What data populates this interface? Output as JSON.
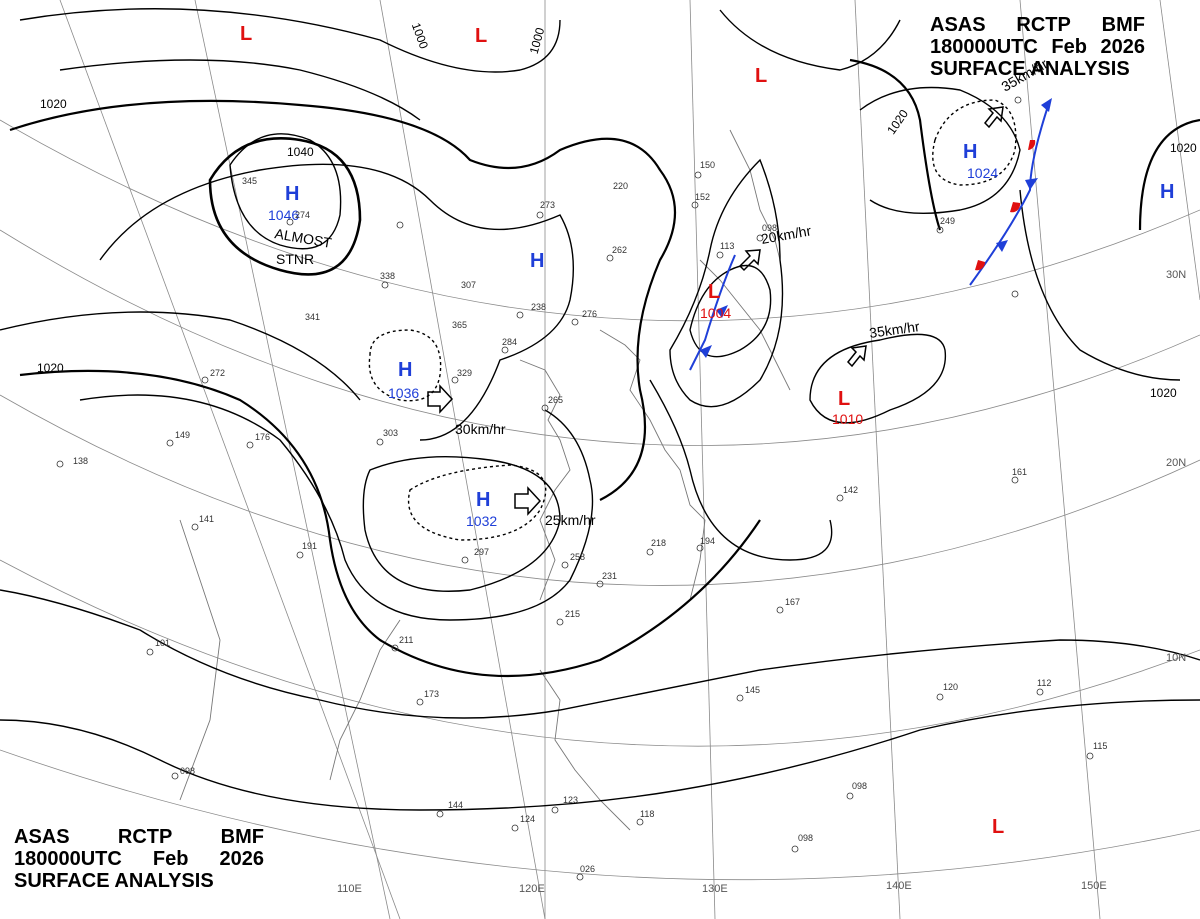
{
  "header": {
    "line1": [
      "ASAS",
      "RCTP",
      "BMF"
    ],
    "line2": [
      "180000UTC",
      "Feb",
      "2026"
    ],
    "line3": "SURFACE ANALYSIS"
  },
  "footer": {
    "line1": [
      "ASAS",
      "RCTP",
      "BMF"
    ],
    "line2": [
      "180000UTC",
      "Feb",
      "2026"
    ],
    "line3": "SURFACE ANALYSIS"
  },
  "colors": {
    "high": "#1f3fd8",
    "low": "#e01010",
    "isobar": "#000000",
    "grid": "#8a8a8a",
    "coast": "#777777"
  },
  "grid_labels": {
    "lon": [
      "110E",
      "120E",
      "130E",
      "140E",
      "150E"
    ],
    "lat": [
      "30N",
      "20N",
      "10N"
    ]
  },
  "isobar_labels": [
    "1020",
    "1040",
    "1000",
    "1000",
    "1020",
    "1020",
    "1020",
    "1020"
  ],
  "pressure_centers": [
    {
      "type": "H",
      "value": "1046"
    },
    {
      "type": "H",
      "value": ""
    },
    {
      "type": "H",
      "value": "1036"
    },
    {
      "type": "H",
      "value": "1032"
    },
    {
      "type": "H",
      "value": "1024"
    },
    {
      "type": "H",
      "value": ""
    },
    {
      "type": "L",
      "value": ""
    },
    {
      "type": "L",
      "value": ""
    },
    {
      "type": "L",
      "value": ""
    },
    {
      "type": "L",
      "value": "1004"
    },
    {
      "type": "L",
      "value": "1010"
    },
    {
      "type": "L",
      "value": ""
    }
  ],
  "annotations": {
    "almost": "ALMOST",
    "stnr": "STNR"
  },
  "motion_labels": [
    "30km/hr",
    "25km/hr",
    "20km/hr",
    "35km/hr",
    "35km/hr"
  ],
  "station_labels": [
    "274",
    "345",
    "338",
    "341",
    "272",
    "149",
    "176",
    "138",
    "303",
    "141",
    "191",
    "211",
    "101",
    "173",
    "098",
    "144",
    "124",
    "297",
    "258",
    "231",
    "215",
    "218",
    "194",
    "167",
    "145",
    "120",
    "112",
    "115",
    "098",
    "098",
    "161",
    "142",
    "249",
    "262",
    "238",
    "276",
    "284",
    "329",
    "265",
    "307",
    "365",
    "220",
    "273",
    "150",
    "152",
    "113",
    "098",
    "118",
    "123",
    "026"
  ]
}
